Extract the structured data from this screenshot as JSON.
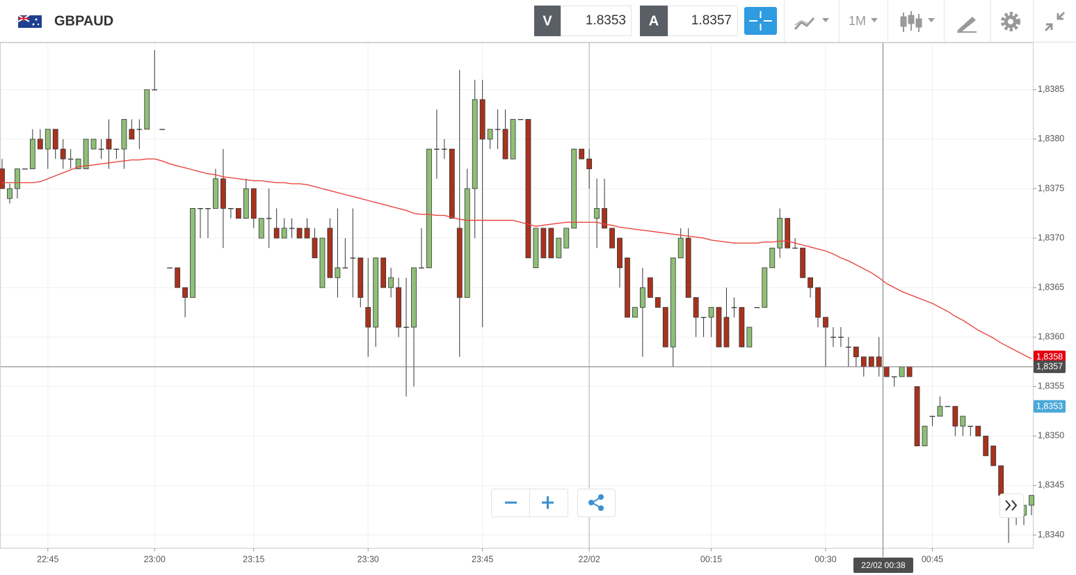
{
  "header": {
    "symbol": "GBPAUD",
    "bid_label": "V",
    "bid": 1.8353,
    "ask_label": "A",
    "ask": 1.8357,
    "timeframe": "1M"
  },
  "chart_data": {
    "type": "candlestick",
    "categories": [
      null,
      null,
      null,
      null,
      null,
      null,
      "22:45",
      null,
      null,
      null,
      null,
      null,
      null,
      null,
      null,
      null,
      null,
      null,
      null,
      null,
      "23:00",
      null,
      null,
      null,
      null,
      null,
      null,
      null,
      null,
      null,
      null,
      null,
      null,
      "23:15",
      null,
      null,
      null,
      null,
      null,
      null,
      null,
      null,
      null,
      null,
      null,
      null,
      null,
      null,
      "23:30",
      null,
      null,
      null,
      null,
      null,
      null,
      null,
      null,
      null,
      null,
      null,
      null,
      null,
      null,
      "23:45",
      null,
      null,
      null,
      null,
      null,
      null,
      null,
      null,
      null,
      null,
      null,
      null,
      null,
      "22/02",
      null,
      null,
      null,
      null,
      null,
      null,
      null,
      null,
      null,
      null,
      null,
      null,
      null,
      null,
      null,
      "00:15",
      null,
      null,
      null,
      null,
      null,
      null,
      null,
      null,
      null,
      null,
      null,
      null,
      null,
      null,
      "00:30",
      null,
      null,
      null,
      null,
      null,
      null,
      null,
      null,
      null,
      null,
      null,
      null,
      null,
      "00:45",
      null,
      null,
      null,
      null,
      null,
      null,
      null,
      null,
      null,
      null,
      null,
      null,
      null
    ],
    "candles": [
      [
        1.8377,
        1.8378,
        1.8375,
        1.8375
      ],
      [
        1.8374,
        1.83755,
        1.83735,
        1.8375
      ],
      [
        1.8375,
        1.8377,
        1.8374,
        1.8377
      ],
      [
        1.8377,
        1.8377,
        1.8377,
        1.8377
      ],
      [
        1.8377,
        1.8381,
        1.8377,
        1.838
      ],
      [
        1.838,
        1.8381,
        1.8379,
        1.8379
      ],
      [
        1.8379,
        1.8381,
        1.8377,
        1.8381
      ],
      [
        1.8381,
        1.8381,
        1.8378,
        1.8379
      ],
      [
        1.8379,
        1.838,
        1.8377,
        1.8378
      ],
      [
        1.8378,
        1.8379,
        1.8377,
        1.8378
      ],
      [
        1.8377,
        1.8378,
        1.8377,
        1.8378
      ],
      [
        1.8377,
        1.838,
        1.8377,
        1.838
      ],
      [
        1.8379,
        1.838,
        1.8379,
        1.838
      ],
      [
        1.8379,
        1.838,
        1.8378,
        1.8379
      ],
      [
        1.838,
        1.8382,
        1.8377,
        1.8379
      ],
      [
        1.8379,
        1.8379,
        1.8378,
        1.8379
      ],
      [
        1.8379,
        1.8382,
        1.8377,
        1.8382
      ],
      [
        1.8381,
        1.8382,
        1.838,
        1.838
      ],
      [
        1.8381,
        1.8382,
        1.8379,
        1.8381
      ],
      [
        1.8381,
        1.8385,
        1.8381,
        1.8385
      ],
      [
        1.8385,
        1.8389,
        1.8385,
        1.8385
      ],
      [
        1.8381,
        1.8381,
        1.8381,
        1.8381
      ],
      [
        1.8367,
        1.8367,
        1.8367,
        1.8367
      ],
      [
        1.8367,
        1.8367,
        1.8365,
        1.8365
      ],
      [
        1.8365,
        1.8365,
        1.8362,
        1.8364
      ],
      [
        1.8364,
        1.8373,
        1.8364,
        1.8373
      ],
      [
        1.8373,
        1.8373,
        1.837,
        1.8373
      ],
      [
        1.8373,
        1.8373,
        1.837,
        1.8373
      ],
      [
        1.8373,
        1.8377,
        1.8373,
        1.8376
      ],
      [
        1.8376,
        1.8379,
        1.8369,
        1.8373
      ],
      [
        1.8373,
        1.8373,
        1.8372,
        1.8373
      ],
      [
        1.8373,
        1.8373,
        1.8372,
        1.8372
      ],
      [
        1.8372,
        1.8376,
        1.8372,
        1.8375
      ],
      [
        1.8375,
        1.8375,
        1.8371,
        1.8372
      ],
      [
        1.837,
        1.8372,
        1.837,
        1.8372
      ],
      [
        1.8372,
        1.8375,
        1.8369,
        1.8372
      ],
      [
        1.8371,
        1.8373,
        1.837,
        1.837
      ],
      [
        1.837,
        1.8372,
        1.837,
        1.8371
      ],
      [
        1.8371,
        1.8372,
        1.837,
        1.8371
      ],
      [
        1.8371,
        1.8371,
        1.837,
        1.837
      ],
      [
        1.8371,
        1.8372,
        1.837,
        1.837
      ],
      [
        1.837,
        1.8371,
        1.8368,
        1.8368
      ],
      [
        1.8365,
        1.837,
        1.8365,
        1.837
      ],
      [
        1.8371,
        1.8372,
        1.8366,
        1.8366
      ],
      [
        1.8366,
        1.8373,
        1.8364,
        1.8367
      ],
      [
        1.8367,
        1.837,
        1.8367,
        1.8367
      ],
      [
        1.8368,
        1.8373,
        1.8364,
        1.8368
      ],
      [
        1.8368,
        1.8368,
        1.8363,
        1.8364
      ],
      [
        1.8363,
        1.8368,
        1.8358,
        1.8361
      ],
      [
        1.8361,
        1.8368,
        1.8359,
        1.8368
      ],
      [
        1.8368,
        1.8368,
        1.8365,
        1.8365
      ],
      [
        1.8365,
        1.8367,
        1.8364,
        1.8366
      ],
      [
        1.8365,
        1.8366,
        1.836,
        1.8361
      ],
      [
        1.8361,
        1.8366,
        1.8354,
        1.8361
      ],
      [
        1.8361,
        1.8367,
        1.8355,
        1.8367
      ],
      [
        1.8367,
        1.8371,
        1.8367,
        1.8367
      ],
      [
        1.8367,
        1.8379,
        1.8367,
        1.8379
      ],
      [
        1.8379,
        1.8383,
        1.8376,
        1.8379
      ],
      [
        1.8379,
        1.838,
        1.8378,
        1.8379
      ],
      [
        1.8379,
        1.8379,
        1.8372,
        1.8372
      ],
      [
        1.8371,
        1.8387,
        1.8358,
        1.8364
      ],
      [
        1.8364,
        1.8377,
        1.8364,
        1.8375
      ],
      [
        1.8375,
        1.8386,
        1.837,
        1.8384
      ],
      [
        1.8384,
        1.8386,
        1.8361,
        1.838
      ],
      [
        1.838,
        1.8381,
        1.8379,
        1.8381
      ],
      [
        1.8381,
        1.8383,
        1.8379,
        1.8381
      ],
      [
        1.8381,
        1.8383,
        1.8378,
        1.8378
      ],
      [
        1.8378,
        1.8382,
        1.8378,
        1.8382
      ],
      [
        1.8382,
        1.8382,
        1.8382,
        1.8382
      ],
      [
        1.8382,
        1.8382,
        1.8368,
        1.8368
      ],
      [
        1.8367,
        1.8371,
        1.8367,
        1.8371
      ],
      [
        1.8371,
        1.8371,
        1.8368,
        1.8368
      ],
      [
        1.8371,
        1.8371,
        1.8368,
        1.8368
      ],
      [
        1.8368,
        1.837,
        1.8368,
        1.837
      ],
      [
        1.8369,
        1.8371,
        1.8369,
        1.8371
      ],
      [
        1.8371,
        1.8379,
        1.8371,
        1.8379
      ],
      [
        1.8379,
        1.8379,
        1.8378,
        1.8378
      ],
      [
        1.8378,
        1.8379,
        1.8375,
        1.8377
      ],
      [
        1.8372,
        1.8376,
        1.8369,
        1.8373
      ],
      [
        1.8373,
        1.8376,
        1.8371,
        1.8371
      ],
      [
        1.8371,
        1.8371,
        1.8369,
        1.8369
      ],
      [
        1.837,
        1.837,
        1.8365,
        1.8367
      ],
      [
        1.8368,
        1.8368,
        1.8362,
        1.8362
      ],
      [
        1.8362,
        1.8363,
        1.8362,
        1.8363
      ],
      [
        1.8363,
        1.8367,
        1.8358,
        1.8365
      ],
      [
        1.8366,
        1.8366,
        1.8364,
        1.8364
      ],
      [
        1.8364,
        1.8364,
        1.8363,
        1.8363
      ],
      [
        1.8363,
        1.8363,
        1.8359,
        1.8359
      ],
      [
        1.8359,
        1.8368,
        1.8357,
        1.8368
      ],
      [
        1.8368,
        1.8371,
        1.8368,
        1.837
      ],
      [
        1.837,
        1.8371,
        1.8364,
        1.8364
      ],
      [
        1.8364,
        1.8364,
        1.836,
        1.8362
      ],
      [
        1.8362,
        1.8362,
        1.836,
        1.8362
      ],
      [
        1.8362,
        1.8363,
        1.836,
        1.8363
      ],
      [
        1.8363,
        1.8363,
        1.8359,
        1.8359
      ],
      [
        1.8362,
        1.8365,
        1.8359,
        1.8359
      ],
      [
        1.8363,
        1.8364,
        1.8362,
        1.8363
      ],
      [
        1.8363,
        1.8363,
        1.8359,
        1.8359
      ],
      [
        1.8359,
        1.8361,
        1.8359,
        1.8361
      ],
      [
        1.8363,
        1.8363,
        1.8363,
        1.8363
      ],
      [
        1.8363,
        1.8367,
        1.8363,
        1.8367
      ],
      [
        1.8367,
        1.8369,
        1.8367,
        1.8369
      ],
      [
        1.8369,
        1.8373,
        1.8368,
        1.8372
      ],
      [
        1.8372,
        1.8372,
        1.8369,
        1.8369
      ],
      [
        1.8369,
        1.837,
        1.8369,
        1.8369
      ],
      [
        1.8369,
        1.8369,
        1.8366,
        1.8366
      ],
      [
        1.8366,
        1.8366,
        1.8364,
        1.8365
      ],
      [
        1.8365,
        1.8365,
        1.8361,
        1.8362
      ],
      [
        1.8362,
        1.8362,
        1.8357,
        1.8361
      ],
      [
        1.836,
        1.8361,
        1.8359,
        1.836
      ],
      [
        1.836,
        1.8361,
        1.8359,
        1.836
      ],
      [
        1.8359,
        1.836,
        1.8357,
        1.8359
      ],
      [
        1.8359,
        1.8359,
        1.8357,
        1.8358
      ],
      [
        1.8358,
        1.8358,
        1.8356,
        1.8357
      ],
      [
        1.8358,
        1.8358,
        1.8357,
        1.8357
      ],
      [
        1.8358,
        1.836,
        1.8356,
        1.8357
      ],
      [
        1.8357,
        1.8357,
        1.8356,
        1.8356
      ],
      [
        1.8356,
        1.8356,
        1.8355,
        1.8356
      ],
      [
        1.8356,
        1.8357,
        1.8356,
        1.8357
      ],
      [
        1.8357,
        1.8357,
        1.8356,
        1.8356
      ],
      [
        1.8355,
        1.8355,
        1.8349,
        1.8349
      ],
      [
        1.8349,
        1.8351,
        1.8349,
        1.8351
      ],
      [
        1.8352,
        1.8352,
        1.8351,
        1.8352
      ],
      [
        1.8352,
        1.8354,
        1.8352,
        1.8353
      ],
      [
        1.8353,
        1.8353,
        1.8353,
        1.8353
      ],
      [
        1.8353,
        1.8353,
        1.835,
        1.8351
      ],
      [
        1.8351,
        1.8352,
        1.835,
        1.8352
      ],
      [
        1.8351,
        1.8351,
        1.835,
        1.8351
      ],
      [
        1.8351,
        1.8351,
        1.835,
        1.835
      ],
      [
        1.835,
        1.835,
        1.8348,
        1.8348
      ],
      [
        1.8349,
        1.8349,
        1.8347,
        1.8347
      ],
      [
        1.8347,
        1.8347,
        1.8344,
        1.8344
      ],
      [
        1.8344,
        1.8344,
        1.83392,
        1.8342
      ],
      [
        1.8342,
        1.8342,
        1.8341,
        1.8342
      ],
      [
        1.8342,
        1.8343,
        1.8341,
        1.8343
      ],
      [
        1.8343,
        1.8344,
        1.8342,
        1.8344
      ]
    ],
    "up_color": "#8fbf78",
    "down_color": "#a8321e",
    "ma": {
      "color": "#e8473f",
      "values": [
        1.83756,
        1.83756,
        1.83756,
        1.83756,
        1.83756,
        1.83757,
        1.8376,
        1.83763,
        1.83766,
        1.83769,
        1.83772,
        1.83773,
        1.83774,
        1.83775,
        1.83776,
        1.83777,
        1.83778,
        1.83779,
        1.83779,
        1.8378,
        1.8378,
        1.83778,
        1.83775,
        1.83773,
        1.83771,
        1.83769,
        1.83767,
        1.83765,
        1.83764,
        1.83762,
        1.83761,
        1.8376,
        1.83759,
        1.83758,
        1.83758,
        1.83757,
        1.83756,
        1.83756,
        1.83755,
        1.83755,
        1.83754,
        1.83752,
        1.8375,
        1.83748,
        1.83746,
        1.83744,
        1.83742,
        1.8374,
        1.83738,
        1.83736,
        1.83734,
        1.83732,
        1.8373,
        1.83728,
        1.83725,
        1.83724,
        1.83724,
        1.83723,
        1.83723,
        1.83721,
        1.83719,
        1.83718,
        1.83718,
        1.83718,
        1.83718,
        1.83718,
        1.83718,
        1.83718,
        1.83716,
        1.83714,
        1.83712,
        1.83713,
        1.83714,
        1.83715,
        1.83716,
        1.83716,
        1.83716,
        1.83716,
        1.83716,
        1.83714,
        1.83713,
        1.83711,
        1.8371,
        1.83709,
        1.83708,
        1.83707,
        1.83706,
        1.83705,
        1.83704,
        1.83703,
        1.83702,
        1.83701,
        1.837,
        1.83698,
        1.83697,
        1.83696,
        1.83695,
        1.83695,
        1.83695,
        1.83695,
        1.83696,
        1.83696,
        1.83697,
        1.83697,
        1.83695,
        1.83693,
        1.83691,
        1.83689,
        1.83687,
        1.83684,
        1.8368,
        1.83677,
        1.83673,
        1.83669,
        1.83665,
        1.8366,
        1.83654,
        1.8365,
        1.83646,
        1.83643,
        1.8364,
        1.83637,
        1.83634,
        1.8363,
        1.83626,
        1.83621,
        1.83617,
        1.83612,
        1.83607,
        1.83603,
        1.83599,
        1.83594,
        1.8359,
        1.83586,
        1.83582,
        1.83578
      ]
    },
    "ylim": [
      1.83387,
      1.83897
    ],
    "yticks": [
      {
        "value": 1.834,
        "label": "1,8340"
      },
      {
        "value": 1.8345,
        "label": "1,8345"
      },
      {
        "value": 1.835,
        "label": "1,8350"
      },
      {
        "value": 1.8355,
        "label": "1,8355"
      },
      {
        "value": 1.836,
        "label": "1,8360"
      },
      {
        "value": 1.8365,
        "label": "1,8365"
      },
      {
        "value": 1.837,
        "label": "1,8370"
      },
      {
        "value": 1.8375,
        "label": "1,8375"
      },
      {
        "value": 1.838,
        "label": "1,8380"
      },
      {
        "value": 1.8385,
        "label": "1,8385"
      }
    ],
    "grid": true,
    "price_markers": [
      {
        "value": 1.8358,
        "label": "1,8358",
        "color": "#e3000f"
      },
      {
        "value": 1.8357,
        "label": "1,8357",
        "color": "#4d4d4d"
      },
      {
        "value": 1.8353,
        "label": "1,8353",
        "color": "#4aa8d8"
      }
    ],
    "crosshair": {
      "value": 1.8357,
      "label": "22/02 00:38"
    }
  }
}
